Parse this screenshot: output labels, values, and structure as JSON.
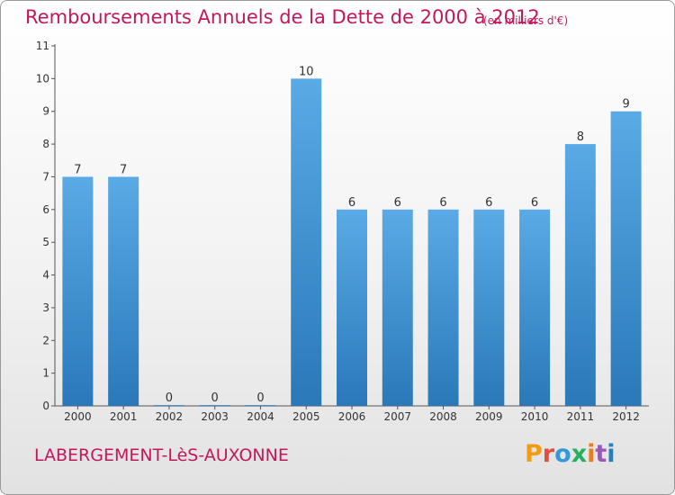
{
  "header": {
    "title": "Remboursements Annuels de la Dette de 2000 à 2012",
    "unit": "(en milliers d'€)"
  },
  "footer": {
    "commune": "LABERGEMENT-LèS-AUXONNE",
    "logo_letters": [
      "P",
      "r",
      "o",
      "x",
      "i",
      "t",
      "i"
    ],
    "logo_colors": [
      "#f39c12",
      "#e74c3c",
      "#3498db",
      "#27ae60",
      "#e67e22",
      "#9b59b6",
      "#2980b9"
    ]
  },
  "chart_data": {
    "type": "bar",
    "title": "Remboursements Annuels de la Dette de 2000 à 2012",
    "xlabel": "",
    "ylabel": "",
    "categories": [
      "2000",
      "2001",
      "2002",
      "2003",
      "2004",
      "2005",
      "2006",
      "2007",
      "2008",
      "2009",
      "2010",
      "2011",
      "2012"
    ],
    "values": [
      7,
      7,
      0,
      0,
      0,
      10,
      6,
      6,
      6,
      6,
      6,
      8,
      9
    ],
    "ylim": [
      0,
      11
    ],
    "yticks": [
      0,
      1,
      2,
      3,
      4,
      5,
      6,
      7,
      8,
      9,
      10,
      11
    ],
    "grid": false,
    "bar_color": "#5aaae6",
    "bar_color_dark": "#2a78b8"
  }
}
